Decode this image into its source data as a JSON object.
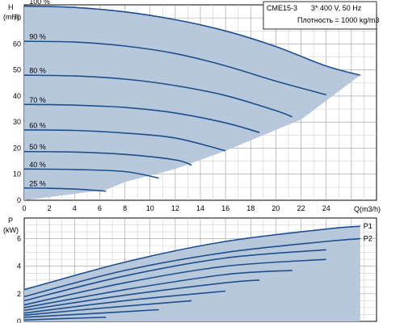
{
  "chart_data": [
    {
      "type": "line",
      "title": "",
      "xlabel": "Q(m3/h)",
      "ylabel": "H (mH)",
      "xlim": [
        0,
        28
      ],
      "ylim": [
        0,
        75
      ],
      "x_ticks": [
        "0",
        "2",
        "4",
        "6",
        "8",
        "10",
        "12",
        "14",
        "16",
        "18",
        "20",
        "22",
        "24"
      ],
      "y_ticks": [
        "0",
        "10",
        "20",
        "30",
        "40",
        "50",
        "60",
        "70"
      ],
      "y_unit_label": "H",
      "y_unit_sub": "(mH)",
      "grid": true,
      "info_box": {
        "model": "CME15-3",
        "supply": "3* 400 V, 50 Hz",
        "density": "Плотность = 1000 kg/m3"
      },
      "fill_color": "#b8c8dc",
      "line_color": "#1f4e8c",
      "series": [
        {
          "name": "100 %",
          "x": [
            0,
            4,
            8,
            12,
            16,
            20,
            24,
            26.7
          ],
          "y": [
            74.5,
            74,
            72.3,
            69.3,
            65,
            59,
            51.5,
            48
          ]
        },
        {
          "name": "90 %",
          "x": [
            0,
            4,
            8,
            12,
            16,
            20,
            24
          ],
          "y": [
            61,
            60.7,
            59.2,
            56.3,
            51.6,
            45.7,
            40.5
          ]
        },
        {
          "name": "80 %",
          "x": [
            0,
            4,
            8,
            12,
            16,
            20,
            21.3
          ],
          "y": [
            48,
            47.7,
            46.5,
            44,
            40.2,
            34.4,
            32
          ]
        },
        {
          "name": "70 %",
          "x": [
            0,
            4,
            8,
            12,
            16,
            18.7
          ],
          "y": [
            36.8,
            36.5,
            35.6,
            33.5,
            29.7,
            26
          ]
        },
        {
          "name": "60 %",
          "x": [
            0,
            4,
            8,
            12,
            16
          ],
          "y": [
            27,
            26.8,
            25.8,
            23.9,
            19
          ]
        },
        {
          "name": "50 %",
          "x": [
            0,
            4,
            8,
            12,
            13.3
          ],
          "y": [
            18.7,
            18.5,
            17.6,
            15.5,
            13.5
          ]
        },
        {
          "name": "40 %",
          "x": [
            0,
            4,
            8,
            10.7
          ],
          "y": [
            12,
            11.8,
            11,
            8.5
          ]
        },
        {
          "name": "25 %",
          "x": [
            0,
            2,
            4,
            6.5
          ],
          "y": [
            4.7,
            4.6,
            4.3,
            3.5
          ]
        }
      ],
      "envelope": {
        "x": [
          0,
          4,
          8,
          12,
          16,
          20,
          24,
          26.7,
          22,
          16,
          12,
          8,
          6.5,
          0
        ],
        "y": [
          74.5,
          74,
          72.3,
          69.3,
          65,
          59,
          51.5,
          48,
          31,
          19,
          12,
          7,
          4,
          0
        ]
      }
    },
    {
      "type": "area",
      "title": "",
      "xlabel": "",
      "ylabel": "P (kW)",
      "xlim": [
        0,
        28
      ],
      "ylim": [
        0,
        7.5
      ],
      "y_ticks": [
        "0",
        "2",
        "4",
        "6"
      ],
      "y_unit_label": "P",
      "y_unit_sub": "(kW)",
      "grid": true,
      "fill_color": "#b8c8dc",
      "line_color": "#1f4e8c",
      "series": [
        {
          "name": "P1",
          "x": [
            0,
            8,
            16,
            24,
            26.7
          ],
          "y": [
            2.3,
            4.3,
            5.8,
            6.7,
            6.9
          ]
        },
        {
          "name": "P2",
          "x": [
            0,
            8,
            16,
            24,
            26.7
          ],
          "y": [
            1.8,
            3.7,
            5.0,
            5.8,
            6.0
          ]
        },
        {
          "name": "",
          "x": [
            0,
            8,
            16,
            24
          ],
          "y": [
            1.5,
            3.3,
            4.6,
            5.2
          ]
        },
        {
          "name": "",
          "x": [
            0,
            8,
            16,
            24
          ],
          "y": [
            1.2,
            2.8,
            4.0,
            4.5
          ]
        },
        {
          "name": "",
          "x": [
            0,
            8,
            16,
            21.3
          ],
          "y": [
            1.0,
            2.3,
            3.4,
            3.7
          ]
        },
        {
          "name": "",
          "x": [
            0,
            8,
            16,
            18.7
          ],
          "y": [
            0.8,
            1.9,
            2.8,
            3.0
          ]
        },
        {
          "name": "",
          "x": [
            0,
            8,
            16
          ],
          "y": [
            0.6,
            1.5,
            2.2
          ]
        },
        {
          "name": "",
          "x": [
            0,
            6,
            13.3
          ],
          "y": [
            0.45,
            0.95,
            1.5
          ]
        },
        {
          "name": "",
          "x": [
            0,
            6,
            10.7
          ],
          "y": [
            0.3,
            0.6,
            0.85
          ]
        },
        {
          "name": "",
          "x": [
            0,
            3,
            6.5
          ],
          "y": [
            0.1,
            0.2,
            0.3
          ]
        }
      ],
      "envelope": {
        "x": [
          0,
          8,
          16,
          24,
          26.7,
          26.7,
          0
        ],
        "y": [
          2.3,
          4.3,
          5.8,
          6.7,
          6.9,
          0,
          0
        ]
      }
    }
  ]
}
